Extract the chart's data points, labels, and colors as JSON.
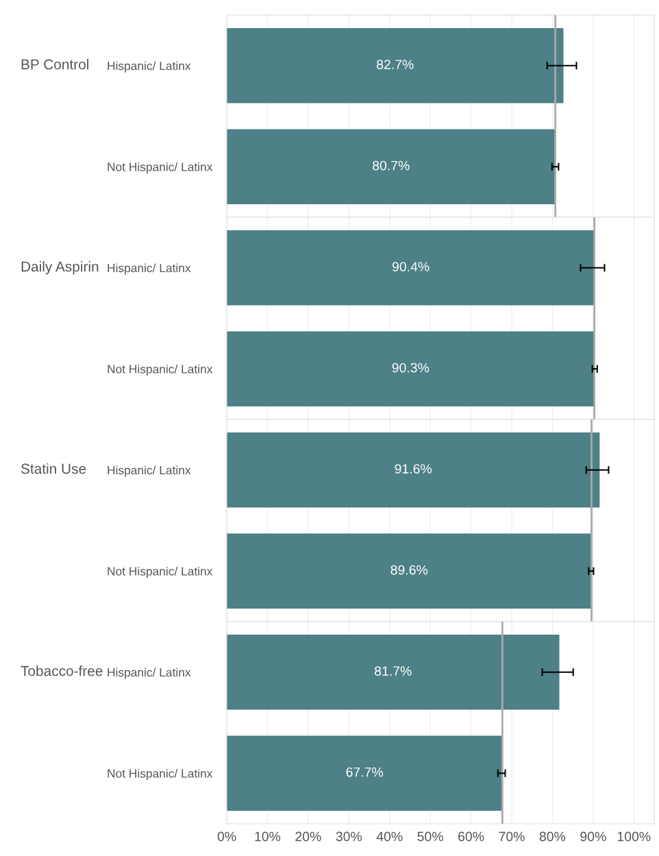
{
  "chart_data": [
    {
      "type": "bar",
      "orientation": "horizontal",
      "title": "BP Control",
      "categories": [
        "Hispanic/ Latinx",
        "Not Hispanic/ Latinx"
      ],
      "values": [
        82.7,
        80.7
      ],
      "value_labels": [
        "82.7%",
        "80.7%"
      ],
      "errors": [
        [
          78.7,
          85.9
        ],
        [
          79.9,
          81.5
        ]
      ],
      "color": "#4d8087",
      "xlim": [
        0,
        105
      ],
      "xticks": [
        {
          "value": 0,
          "label": null
        },
        {
          "value": 10,
          "label": null
        },
        {
          "value": 20,
          "label": null
        },
        {
          "value": 30,
          "label": null
        },
        {
          "value": 40,
          "label": null
        },
        {
          "value": 50,
          "label": null
        },
        {
          "value": 60,
          "label": null
        },
        {
          "value": 70,
          "label": null
        },
        {
          "value": 80,
          "label": null
        },
        {
          "value": 90,
          "label": null
        },
        {
          "value": 100,
          "label": null
        }
      ],
      "grid": "x",
      "tick_labels": "y",
      "ref_lines": [
        {
          "axis": "x",
          "value": 80.7,
          "color": "#aaaaaa"
        }
      ]
    },
    {
      "type": "bar",
      "orientation": "horizontal",
      "title": "Daily Aspirin",
      "categories": [
        "Hispanic/ Latinx",
        "Not Hispanic/ Latinx"
      ],
      "values": [
        90.4,
        90.3
      ],
      "value_labels": [
        "90.4%",
        "90.3%"
      ],
      "errors": [
        [
          86.9,
          92.8
        ],
        [
          89.8,
          91.0
        ]
      ],
      "color": "#4d8087",
      "xlim": [
        0,
        105
      ],
      "xticks": [
        {
          "value": 0,
          "label": null
        },
        {
          "value": 10,
          "label": null
        },
        {
          "value": 20,
          "label": null
        },
        {
          "value": 30,
          "label": null
        },
        {
          "value": 40,
          "label": null
        },
        {
          "value": 50,
          "label": null
        },
        {
          "value": 60,
          "label": null
        },
        {
          "value": 70,
          "label": null
        },
        {
          "value": 80,
          "label": null
        },
        {
          "value": 90,
          "label": null
        },
        {
          "value": 100,
          "label": null
        }
      ],
      "grid": "x",
      "tick_labels": "y",
      "ref_lines": [
        {
          "axis": "x",
          "value": 90.3,
          "color": "#aaaaaa"
        }
      ]
    },
    {
      "type": "bar",
      "orientation": "horizontal",
      "title": "Statin Use",
      "categories": [
        "Hispanic/ Latinx",
        "Not Hispanic/ Latinx"
      ],
      "values": [
        91.6,
        89.6
      ],
      "value_labels": [
        "91.6%",
        "89.6%"
      ],
      "errors": [
        [
          88.3,
          93.8
        ],
        [
          88.9,
          90.1
        ]
      ],
      "color": "#4d8087",
      "xlim": [
        0,
        105
      ],
      "xticks": [
        {
          "value": 0,
          "label": null
        },
        {
          "value": 10,
          "label": null
        },
        {
          "value": 20,
          "label": null
        },
        {
          "value": 30,
          "label": null
        },
        {
          "value": 40,
          "label": null
        },
        {
          "value": 50,
          "label": null
        },
        {
          "value": 60,
          "label": null
        },
        {
          "value": 70,
          "label": null
        },
        {
          "value": 80,
          "label": null
        },
        {
          "value": 90,
          "label": null
        },
        {
          "value": 100,
          "label": null
        }
      ],
      "grid": "x",
      "tick_labels": "y",
      "ref_lines": [
        {
          "axis": "x",
          "value": 89.6,
          "color": "#aaaaaa"
        }
      ]
    },
    {
      "type": "bar",
      "orientation": "horizontal",
      "title": "Tobacco-free",
      "categories": [
        "Hispanic/ Latinx",
        "Not Hispanic/ Latinx"
      ],
      "values": [
        81.7,
        67.7
      ],
      "value_labels": [
        "81.7%",
        "67.7%"
      ],
      "errors": [
        [
          77.5,
          85.1
        ],
        [
          66.6,
          68.4
        ]
      ],
      "color": "#4d8087",
      "xlim": [
        0,
        105
      ],
      "xticks": [
        {
          "value": 0,
          "label": "0%"
        },
        {
          "value": 10,
          "label": "10%"
        },
        {
          "value": 20,
          "label": "20%"
        },
        {
          "value": 30,
          "label": "30%"
        },
        {
          "value": 40,
          "label": "40%"
        },
        {
          "value": 50,
          "label": "50%"
        },
        {
          "value": 60,
          "label": "60%"
        },
        {
          "value": 70,
          "label": "70%"
        },
        {
          "value": 80,
          "label": "80%"
        },
        {
          "value": 90,
          "label": "90%"
        },
        {
          "value": 100,
          "label": "100%"
        }
      ],
      "grid": "x",
      "ref_lines": [
        {
          "axis": "x",
          "value": 67.7,
          "color": "#aaaaaa"
        }
      ]
    }
  ]
}
